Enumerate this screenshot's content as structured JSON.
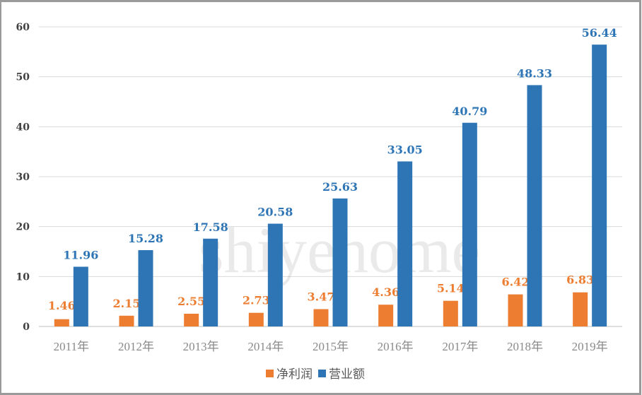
{
  "watermark": "shiyehome",
  "chart_data": {
    "type": "bar",
    "title": "",
    "xlabel": "",
    "ylabel": "",
    "categories": [
      "2011年",
      "2012年",
      "2013年",
      "2014年",
      "2015年",
      "2016年",
      "2017年",
      "2018年",
      "2019年"
    ],
    "series": [
      {
        "name": "净利润",
        "color": "#ED7D31",
        "values": [
          1.46,
          2.15,
          2.55,
          2.73,
          3.47,
          4.36,
          5.14,
          6.42,
          6.83
        ]
      },
      {
        "name": "营业额",
        "color": "#2E75B6",
        "values": [
          11.96,
          15.28,
          17.58,
          20.58,
          25.63,
          33.05,
          40.79,
          48.33,
          56.44
        ]
      }
    ],
    "ylim": [
      0,
      60
    ],
    "yticks": [
      0,
      10,
      20,
      30,
      40,
      50,
      60
    ],
    "grid": true,
    "data_labels": true,
    "legend": "bottom"
  }
}
